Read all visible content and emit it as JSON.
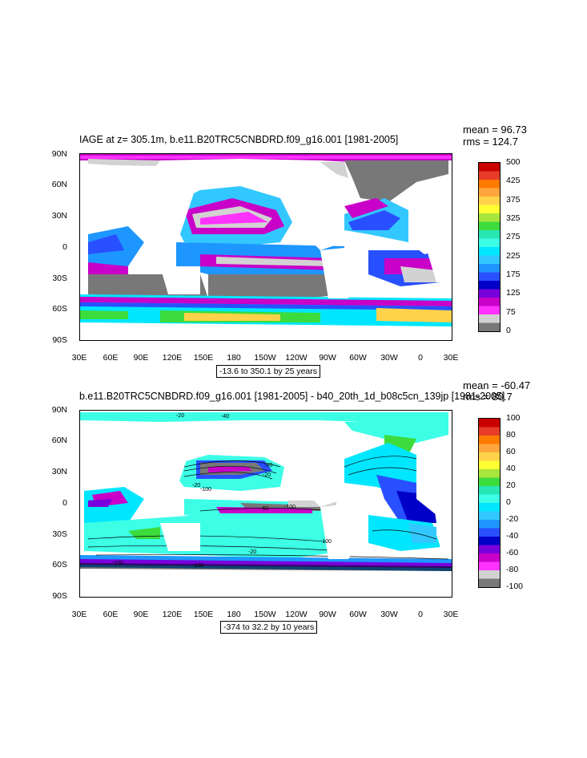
{
  "panels": [
    {
      "title": "IAGE at z= 305.1m, b.e11.B20TRC5CNBDRD.f09_g16.001 [1981-2005]",
      "mean": "mean = 96.73",
      "rms": "rms = 124.7",
      "range_note": "-13.6 to 350.1 by 25 years",
      "lat_labels": [
        "90N",
        "60N",
        "30N",
        "0",
        "30S",
        "60S",
        "90S"
      ],
      "lon_labels": [
        "30E",
        "60E",
        "90E",
        "120E",
        "150E",
        "180",
        "150W",
        "120W",
        "90W",
        "60W",
        "30W",
        "0",
        "30E"
      ],
      "colorbar": {
        "labels": [
          "500",
          "425",
          "375",
          "325",
          "275",
          "225",
          "175",
          "125",
          "75",
          "0"
        ],
        "colors": [
          "#c80000",
          "#e83c28",
          "#ff7b00",
          "#ffa63c",
          "#ffd24a",
          "#ffff33",
          "#a8e63c",
          "#3cdc3c",
          "#28e6b4",
          "#3cffe6",
          "#00e6ff",
          "#32c8ff",
          "#1e96ff",
          "#2850ff",
          "#0000c8",
          "#7800dc",
          "#c800c8",
          "#ff32ff",
          "#d2d2d2",
          "#787878"
        ]
      },
      "contour_labels": []
    },
    {
      "title": "b.e11.B20TRC5CNBDRD.f09_g16.001 [1981-2005] - b40_20th_1d_b08c5cn_139jp [1981-2005]",
      "mean": "mean = -60.47",
      "rms": "rms = 80.7",
      "range_note": "-374 to 32.2 by 10 years",
      "lat_labels": [
        "90N",
        "60N",
        "30N",
        "0",
        "30S",
        "60S",
        "90S"
      ],
      "lon_labels": [
        "30E",
        "60E",
        "90E",
        "120E",
        "150E",
        "180",
        "150W",
        "120W",
        "90W",
        "60W",
        "30W",
        "0",
        "30E"
      ],
      "colorbar": {
        "labels": [
          "100",
          "80",
          "60",
          "40",
          "20",
          "0",
          "-20",
          "-40",
          "-60",
          "-80",
          "-100"
        ],
        "colors": [
          "#c80000",
          "#e83c28",
          "#ff7b00",
          "#ffa63c",
          "#ffd24a",
          "#ffff33",
          "#a8e63c",
          "#3cdc3c",
          "#28e6b4",
          "#3cffe6",
          "#00e6ff",
          "#32c8ff",
          "#1e96ff",
          "#2850ff",
          "#0000c8",
          "#7800dc",
          "#c800c8",
          "#ff32ff",
          "#d2d2d2",
          "#787878"
        ]
      },
      "contour_labels": [
        "-20",
        "-40",
        "-40",
        "-20",
        "-20",
        "-100",
        "-60",
        "-100",
        "-100",
        "-20",
        "-100",
        "-100"
      ]
    }
  ]
}
